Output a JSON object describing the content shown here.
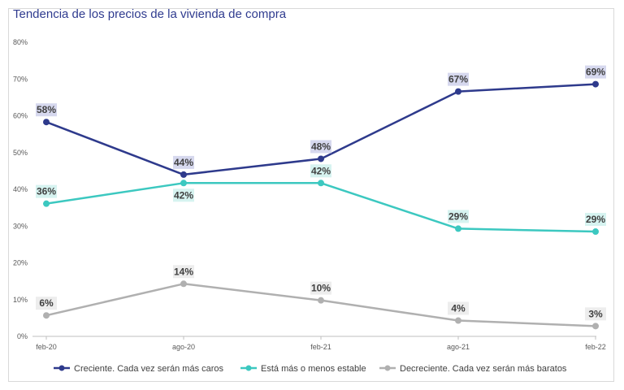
{
  "chart_data": {
    "type": "line",
    "title": "Tendencia de los precios de la vivienda de compra",
    "categories": [
      "feb-20",
      "ago-20",
      "feb-21",
      "ago-21",
      "feb-22"
    ],
    "ylim": [
      0,
      80
    ],
    "yticks": [
      "0%",
      "10%",
      "20%",
      "30%",
      "40%",
      "50%",
      "60%",
      "70%",
      "80%"
    ],
    "grid": false,
    "legend_position": "bottom",
    "series": [
      {
        "name": "Creciente. Cada vez serán más caros",
        "color": "#2e3a8c",
        "label_bg": "#d6d8ee",
        "values": [
          58.3,
          44.0,
          48.3,
          66.6,
          68.6
        ],
        "labels": [
          "58%",
          "44%",
          "48%",
          "67%",
          "69%"
        ],
        "label_pos": [
          "above",
          "above",
          "above",
          "above",
          "above"
        ]
      },
      {
        "name": "Está más o menos estable",
        "color": "#3cc8c0",
        "label_bg": "#d6f3f0",
        "values": [
          36.1,
          41.7,
          41.7,
          29.3,
          28.5
        ],
        "labels": [
          "36%",
          "42%",
          "42%",
          "29%",
          "29%"
        ],
        "label_pos": [
          "above",
          "below",
          "above",
          "above",
          "above"
        ]
      },
      {
        "name": "Decreciente. Cada vez serán más baratos",
        "color": "#b0b0b0",
        "label_bg": "#ededed",
        "values": [
          5.7,
          14.3,
          9.8,
          4.3,
          2.8
        ],
        "labels": [
          "6%",
          "14%",
          "10%",
          "4%",
          "3%"
        ],
        "label_pos": [
          "above",
          "above",
          "above",
          "above",
          "above"
        ]
      }
    ]
  }
}
